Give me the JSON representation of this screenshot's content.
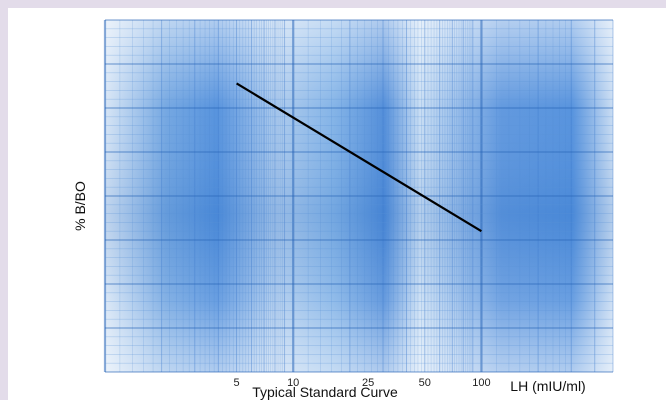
{
  "chart_data": {
    "type": "line",
    "title": "",
    "caption": "Typical Standard Curve",
    "xlabel": "LH (mIU/ml)",
    "ylabel": "% B/BO",
    "x_scale": "log",
    "xlim": [
      1,
      500
    ],
    "x_ticks": [
      5,
      10,
      25,
      50,
      100
    ],
    "x_tick_labels": [
      "5",
      "10",
      "25",
      "50",
      "100"
    ],
    "y_tick_labels": [],
    "grid": true,
    "colors": {
      "line": "#000000",
      "paper": "#4f8edc",
      "paper_light": "#cfe0f4"
    },
    "series": [
      {
        "x": [
          5,
          100
        ],
        "y_relative": [
          0.82,
          0.4
        ]
      }
    ]
  }
}
